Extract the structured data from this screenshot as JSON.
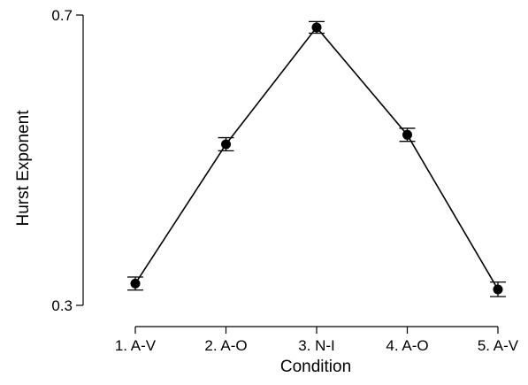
{
  "chart_data": {
    "type": "line",
    "title": "",
    "xlabel": "Condition",
    "ylabel": "Hurst Exponent",
    "categories": [
      "1. A-V",
      "2. A-O",
      "3. N-I",
      "4. A-O",
      "5. A-V"
    ],
    "series": [
      {
        "values": [
          0.33,
          0.522,
          0.683,
          0.535,
          0.322
        ],
        "error": [
          0.009,
          0.009,
          0.008,
          0.009,
          0.01
        ]
      }
    ],
    "ylim": [
      0.3,
      0.7
    ],
    "yticks": [
      "0.3",
      "0.7"
    ],
    "grid": false,
    "legend": "none",
    "colors": {
      "line": "#000000",
      "marker": "#000000",
      "axis": "#000000"
    }
  }
}
